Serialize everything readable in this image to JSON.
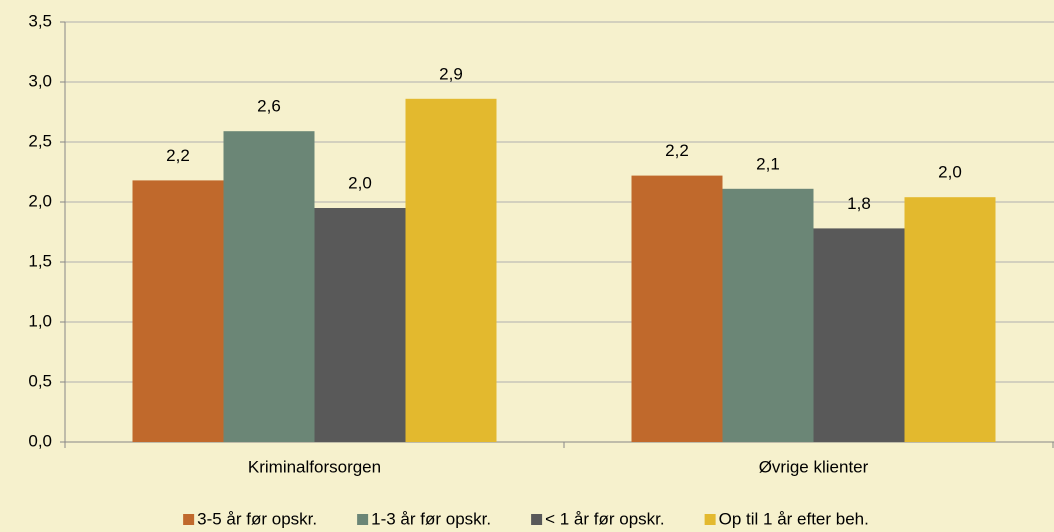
{
  "chart_data": {
    "type": "bar",
    "categories": [
      "Kriminalforsorgen",
      "Øvrige klienter"
    ],
    "series": [
      {
        "name": "3-5 år før opskr.",
        "color": "#c0692c",
        "values": [
          2.18,
          2.22
        ],
        "value_labels": [
          "2,2",
          "2,2"
        ]
      },
      {
        "name": "1-3 år før opskr.",
        "color": "#6b8676",
        "values": [
          2.59,
          2.11
        ],
        "value_labels": [
          "2,6",
          "2,1"
        ]
      },
      {
        "name": "< 1 år før opskr.",
        "color": "#595959",
        "values": [
          1.95,
          1.78
        ],
        "value_labels": [
          "2,0",
          "1,8"
        ]
      },
      {
        "name": "Op til 1 år efter beh.",
        "color": "#e3b92e",
        "values": [
          2.86,
          2.04
        ],
        "value_labels": [
          "2,9",
          "2,0"
        ]
      }
    ],
    "ylim": [
      0,
      3.5
    ],
    "yticks": [
      {
        "value": 0,
        "label": "0,0"
      },
      {
        "value": 0.5,
        "label": "0,5"
      },
      {
        "value": 1,
        "label": "1,0"
      },
      {
        "value": 1.5,
        "label": "1,5"
      },
      {
        "value": 2,
        "label": "2,0"
      },
      {
        "value": 2.5,
        "label": "2,5"
      },
      {
        "value": 3,
        "label": "3,0"
      },
      {
        "value": 3.5,
        "label": "3,5"
      }
    ],
    "grid": true,
    "legend": "bottom"
  }
}
